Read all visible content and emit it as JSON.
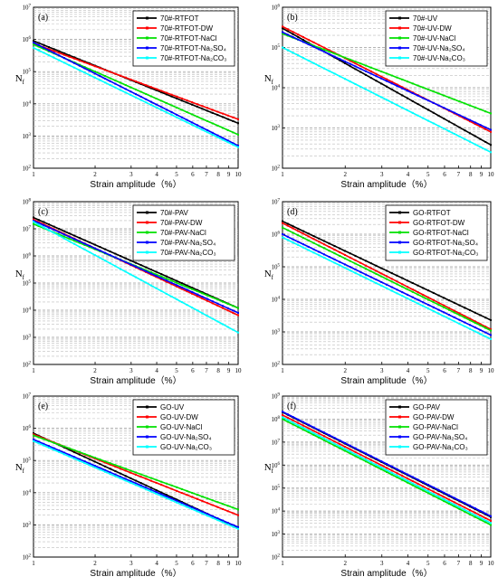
{
  "figure": {
    "background": "#ffffff"
  },
  "chart_data": [
    {
      "panel": "(a)",
      "type": "line",
      "xscale": "log",
      "yscale": "log",
      "xlabel": "Strain amplitude（%）",
      "ylabel_base": "N",
      "ylabel_sub": "f",
      "xlim": [
        1,
        10
      ],
      "ylim_exp": [
        2,
        7
      ],
      "legend": "top-right",
      "x_ticks": [
        1,
        2,
        3,
        4,
        5,
        6,
        7,
        8,
        9,
        10
      ],
      "series": [
        {
          "name": "70#-RTFOT",
          "color": "#000000",
          "x": [
            1,
            10
          ],
          "y": [
            900000,
            2500
          ]
        },
        {
          "name": "70#-RTFOT-DW",
          "color": "#ff0000",
          "x": [
            1,
            10
          ],
          "y": [
            750000,
            3300
          ]
        },
        {
          "name": "70#-RTFOT-NaCl",
          "color": "#00e000",
          "x": [
            1,
            10
          ],
          "y": [
            700000,
            1100
          ]
        },
        {
          "name": "70#-RTFOT-Na₂SO₄",
          "color": "#0000ff",
          "x": [
            1,
            10
          ],
          "y": [
            800000,
            500
          ]
        },
        {
          "name": "70#-RTFOT-Na₂CO₃",
          "color": "#00ffff",
          "x": [
            1,
            10
          ],
          "y": [
            550000,
            450
          ]
        }
      ]
    },
    {
      "panel": "(b)",
      "type": "line",
      "xscale": "log",
      "yscale": "log",
      "xlabel": "Strain amplitude（%）",
      "ylabel_base": "N",
      "ylabel_sub": "f",
      "xlim": [
        1,
        10
      ],
      "ylim_exp": [
        2,
        6
      ],
      "legend": "top-right",
      "x_ticks": [
        1,
        2,
        3,
        4,
        5,
        6,
        7,
        8,
        9,
        10
      ],
      "series": [
        {
          "name": "70#-UV",
          "color": "#000000",
          "x": [
            1,
            10
          ],
          "y": [
            300000,
            380
          ]
        },
        {
          "name": "70#-UV-DW",
          "color": "#ff0000",
          "x": [
            1,
            10
          ],
          "y": [
            330000,
            800
          ]
        },
        {
          "name": "70#-UV-NaCl",
          "color": "#00e000",
          "x": [
            1,
            10
          ],
          "y": [
            220000,
            2300
          ]
        },
        {
          "name": "70#-UV-Na₂SO₄",
          "color": "#0000ff",
          "x": [
            1,
            10
          ],
          "y": [
            240000,
            900
          ]
        },
        {
          "name": "70#-UV-Na₂CO₃",
          "color": "#00ffff",
          "x": [
            1,
            10
          ],
          "y": [
            100000,
            250
          ]
        }
      ]
    },
    {
      "panel": "(c)",
      "type": "line",
      "xscale": "log",
      "yscale": "log",
      "xlabel": "Strain amplitude（%）",
      "ylabel_base": "N",
      "ylabel_sub": "f",
      "xlim": [
        1,
        10
      ],
      "ylim_exp": [
        2,
        8
      ],
      "legend": "top-right",
      "x_ticks": [
        1,
        2,
        3,
        4,
        5,
        6,
        7,
        8,
        9,
        10
      ],
      "series": [
        {
          "name": "70#-PAV",
          "color": "#000000",
          "x": [
            1,
            10
          ],
          "y": [
            26000000,
            12000
          ]
        },
        {
          "name": "70#-PAV-DW",
          "color": "#ff0000",
          "x": [
            1,
            10
          ],
          "y": [
            22000000,
            6500
          ]
        },
        {
          "name": "70#-PAV-NaCl",
          "color": "#00e000",
          "x": [
            1,
            10
          ],
          "y": [
            15000000,
            12000
          ]
        },
        {
          "name": "70#-PAV-Na₂SO₄",
          "color": "#0000ff",
          "x": [
            1,
            10
          ],
          "y": [
            20000000,
            8000
          ]
        },
        {
          "name": "70#-PAV-Na₂CO₃",
          "color": "#00ffff",
          "x": [
            1,
            10
          ],
          "y": [
            18000000,
            1500
          ]
        }
      ]
    },
    {
      "panel": "(d)",
      "type": "line",
      "xscale": "log",
      "yscale": "log",
      "xlabel": "Strain amplitude（%）",
      "ylabel_base": "N",
      "ylabel_sub": "f",
      "xlim": [
        1,
        10
      ],
      "ylim_exp": [
        2,
        7
      ],
      "legend": "top-right",
      "x_ticks": [
        1,
        2,
        3,
        4,
        5,
        6,
        7,
        8,
        9,
        10
      ],
      "series": [
        {
          "name": "GO-RTFOT",
          "color": "#000000",
          "x": [
            1,
            10
          ],
          "y": [
            2500000,
            2300
          ]
        },
        {
          "name": "GO-RTFOT-DW",
          "color": "#ff0000",
          "x": [
            1,
            10
          ],
          "y": [
            2200000,
            1200
          ]
        },
        {
          "name": "GO-RTFOT-NaCl",
          "color": "#00e000",
          "x": [
            1,
            10
          ],
          "y": [
            1600000,
            1100
          ]
        },
        {
          "name": "GO-RTFOT-Na₂SO₄",
          "color": "#0000ff",
          "x": [
            1,
            10
          ],
          "y": [
            1000000,
            800
          ]
        },
        {
          "name": "GO-RTFOT-Na₂CO₃",
          "color": "#00ffff",
          "x": [
            1,
            10
          ],
          "y": [
            800000,
            600
          ]
        }
      ]
    },
    {
      "panel": "(e)",
      "type": "line",
      "xscale": "log",
      "yscale": "log",
      "xlabel": "Strain amplitude（%）",
      "ylabel_base": "N",
      "ylabel_sub": "f",
      "xlim": [
        1,
        10
      ],
      "ylim_exp": [
        2,
        7
      ],
      "legend": "top-right",
      "x_ticks": [
        1,
        2,
        3,
        4,
        5,
        6,
        7,
        8,
        9,
        10
      ],
      "series": [
        {
          "name": "GO-UV",
          "color": "#000000",
          "x": [
            1,
            10
          ],
          "y": [
            700000,
            800
          ]
        },
        {
          "name": "GO-UV-DW",
          "color": "#ff0000",
          "x": [
            1,
            10
          ],
          "y": [
            650000,
            2000
          ]
        },
        {
          "name": "GO-UV-NaCl",
          "color": "#00e000",
          "x": [
            1,
            10
          ],
          "y": [
            600000,
            3000
          ]
        },
        {
          "name": "GO-UV-Na₂SO₄",
          "color": "#0000ff",
          "x": [
            1,
            10
          ],
          "y": [
            450000,
            850
          ]
        },
        {
          "name": "GO-UV-Na₂CO₃",
          "color": "#00ffff",
          "x": [
            1,
            10
          ],
          "y": [
            400000,
            750
          ]
        }
      ]
    },
    {
      "panel": "(f)",
      "type": "line",
      "xscale": "log",
      "yscale": "log",
      "xlabel": "Strain amplitude（%）",
      "ylabel_base": "N",
      "ylabel_sub": "f",
      "xlim": [
        1,
        10
      ],
      "ylim_exp": [
        2,
        9
      ],
      "legend": "top-right",
      "x_ticks": [
        1,
        2,
        3,
        4,
        5,
        6,
        7,
        8,
        9,
        10
      ],
      "series": [
        {
          "name": "GO-PAV",
          "color": "#000000",
          "x": [
            1,
            10
          ],
          "y": [
            200000000,
            5500
          ]
        },
        {
          "name": "GO-PAV-DW",
          "color": "#ff0000",
          "x": [
            1,
            10
          ],
          "y": [
            150000000,
            3800
          ]
        },
        {
          "name": "GO-PAV-NaCl",
          "color": "#00e000",
          "x": [
            1,
            10
          ],
          "y": [
            100000000,
            2500
          ]
        },
        {
          "name": "GO-PAV-Na₂SO₄",
          "color": "#0000ff",
          "x": [
            1,
            10
          ],
          "y": [
            210000000,
            6000
          ]
        },
        {
          "name": "GO-PAV-Na₂CO₃",
          "color": "#00ffff",
          "x": [
            1,
            10
          ],
          "y": [
            120000000,
            3000
          ]
        }
      ]
    }
  ]
}
